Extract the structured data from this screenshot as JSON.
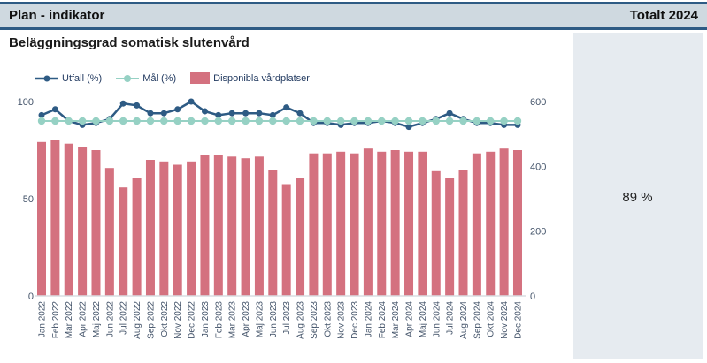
{
  "header": {
    "left": "Plan - indikator",
    "right": "Totalt 2024"
  },
  "title": "Beläggningsgrad somatisk slutenvård",
  "legend": {
    "utfall": "Utfall (%)",
    "mal": "Mål (%)",
    "platser": "Disponibla vårdplatser"
  },
  "total_panel": {
    "value": "89 %"
  },
  "colors": {
    "utfall_line": "#2e5b84",
    "mal_line": "#96d1c4",
    "bar": "#d4717f",
    "axis_text": "#44546a",
    "header_bg": "#cfd9e0",
    "panel_bg": "#e6ebf0",
    "border_navy": "#2e5b84"
  },
  "chart_data": {
    "type": "bar",
    "title": "Beläggningsgrad somatisk slutenvård",
    "xlabel": "",
    "ylabel_left": "%",
    "ylabel_right": "Disponibla vårdplatser",
    "left_axis": {
      "ticks": [
        100,
        50,
        0
      ],
      "range": [
        0,
        110
      ]
    },
    "right_axis": {
      "ticks": [
        600,
        400,
        200,
        0
      ],
      "range": [
        0,
        660
      ]
    },
    "grid": false,
    "legend_position": "top",
    "categories": [
      "Jan 2022",
      "Feb 2022",
      "Mar 2022",
      "Apr 2022",
      "Maj 2022",
      "Jun 2022",
      "Jul 2022",
      "Aug 2022",
      "Sep 2022",
      "Okt 2022",
      "Nov 2022",
      "Dec 2022",
      "Jan 2023",
      "Feb 2023",
      "Mar 2023",
      "Apr 2023",
      "Maj 2023",
      "Jun 2023",
      "Jul 2023",
      "Aug 2023",
      "Sep 2023",
      "Okt 2023",
      "Nov 2023",
      "Dec 2023",
      "Jan 2024",
      "Feb 2024",
      "Mar 2024",
      "Apr 2024",
      "Maj 2024",
      "Jun 2024",
      "Jul 2024",
      "Aug 2024",
      "Sep 2024",
      "Okt 2024",
      "Nov 2024",
      "Dec 2024"
    ],
    "series": [
      {
        "name": "Utfall (%)",
        "type": "line",
        "axis": "left",
        "color": "#2e5b84",
        "values": [
          93,
          96,
          90,
          88,
          89,
          91,
          99,
          98,
          94,
          94,
          96,
          100,
          95,
          93,
          94,
          94,
          94,
          93,
          97,
          94,
          89,
          89,
          88,
          89,
          89,
          90,
          89,
          87,
          89,
          91,
          94,
          91,
          89,
          89,
          88,
          88
        ]
      },
      {
        "name": "Mål (%)",
        "type": "line",
        "axis": "left",
        "color": "#96d1c4",
        "values": [
          90,
          90,
          90,
          90,
          90,
          90,
          90,
          90,
          90,
          90,
          90,
          90,
          90,
          90,
          90,
          90,
          90,
          90,
          90,
          90,
          90,
          90,
          90,
          90,
          90,
          90,
          90,
          90,
          90,
          90,
          90,
          90,
          90,
          90,
          90,
          90
        ]
      },
      {
        "name": "Disponibla vårdplatser",
        "type": "bar",
        "axis": "right",
        "color": "#d4717f",
        "values": [
          475,
          480,
          470,
          460,
          450,
          395,
          335,
          365,
          420,
          415,
          405,
          415,
          435,
          435,
          430,
          425,
          430,
          390,
          345,
          365,
          440,
          440,
          445,
          440,
          455,
          445,
          450,
          445,
          445,
          385,
          365,
          390,
          440,
          445,
          455,
          450
        ]
      }
    ]
  }
}
